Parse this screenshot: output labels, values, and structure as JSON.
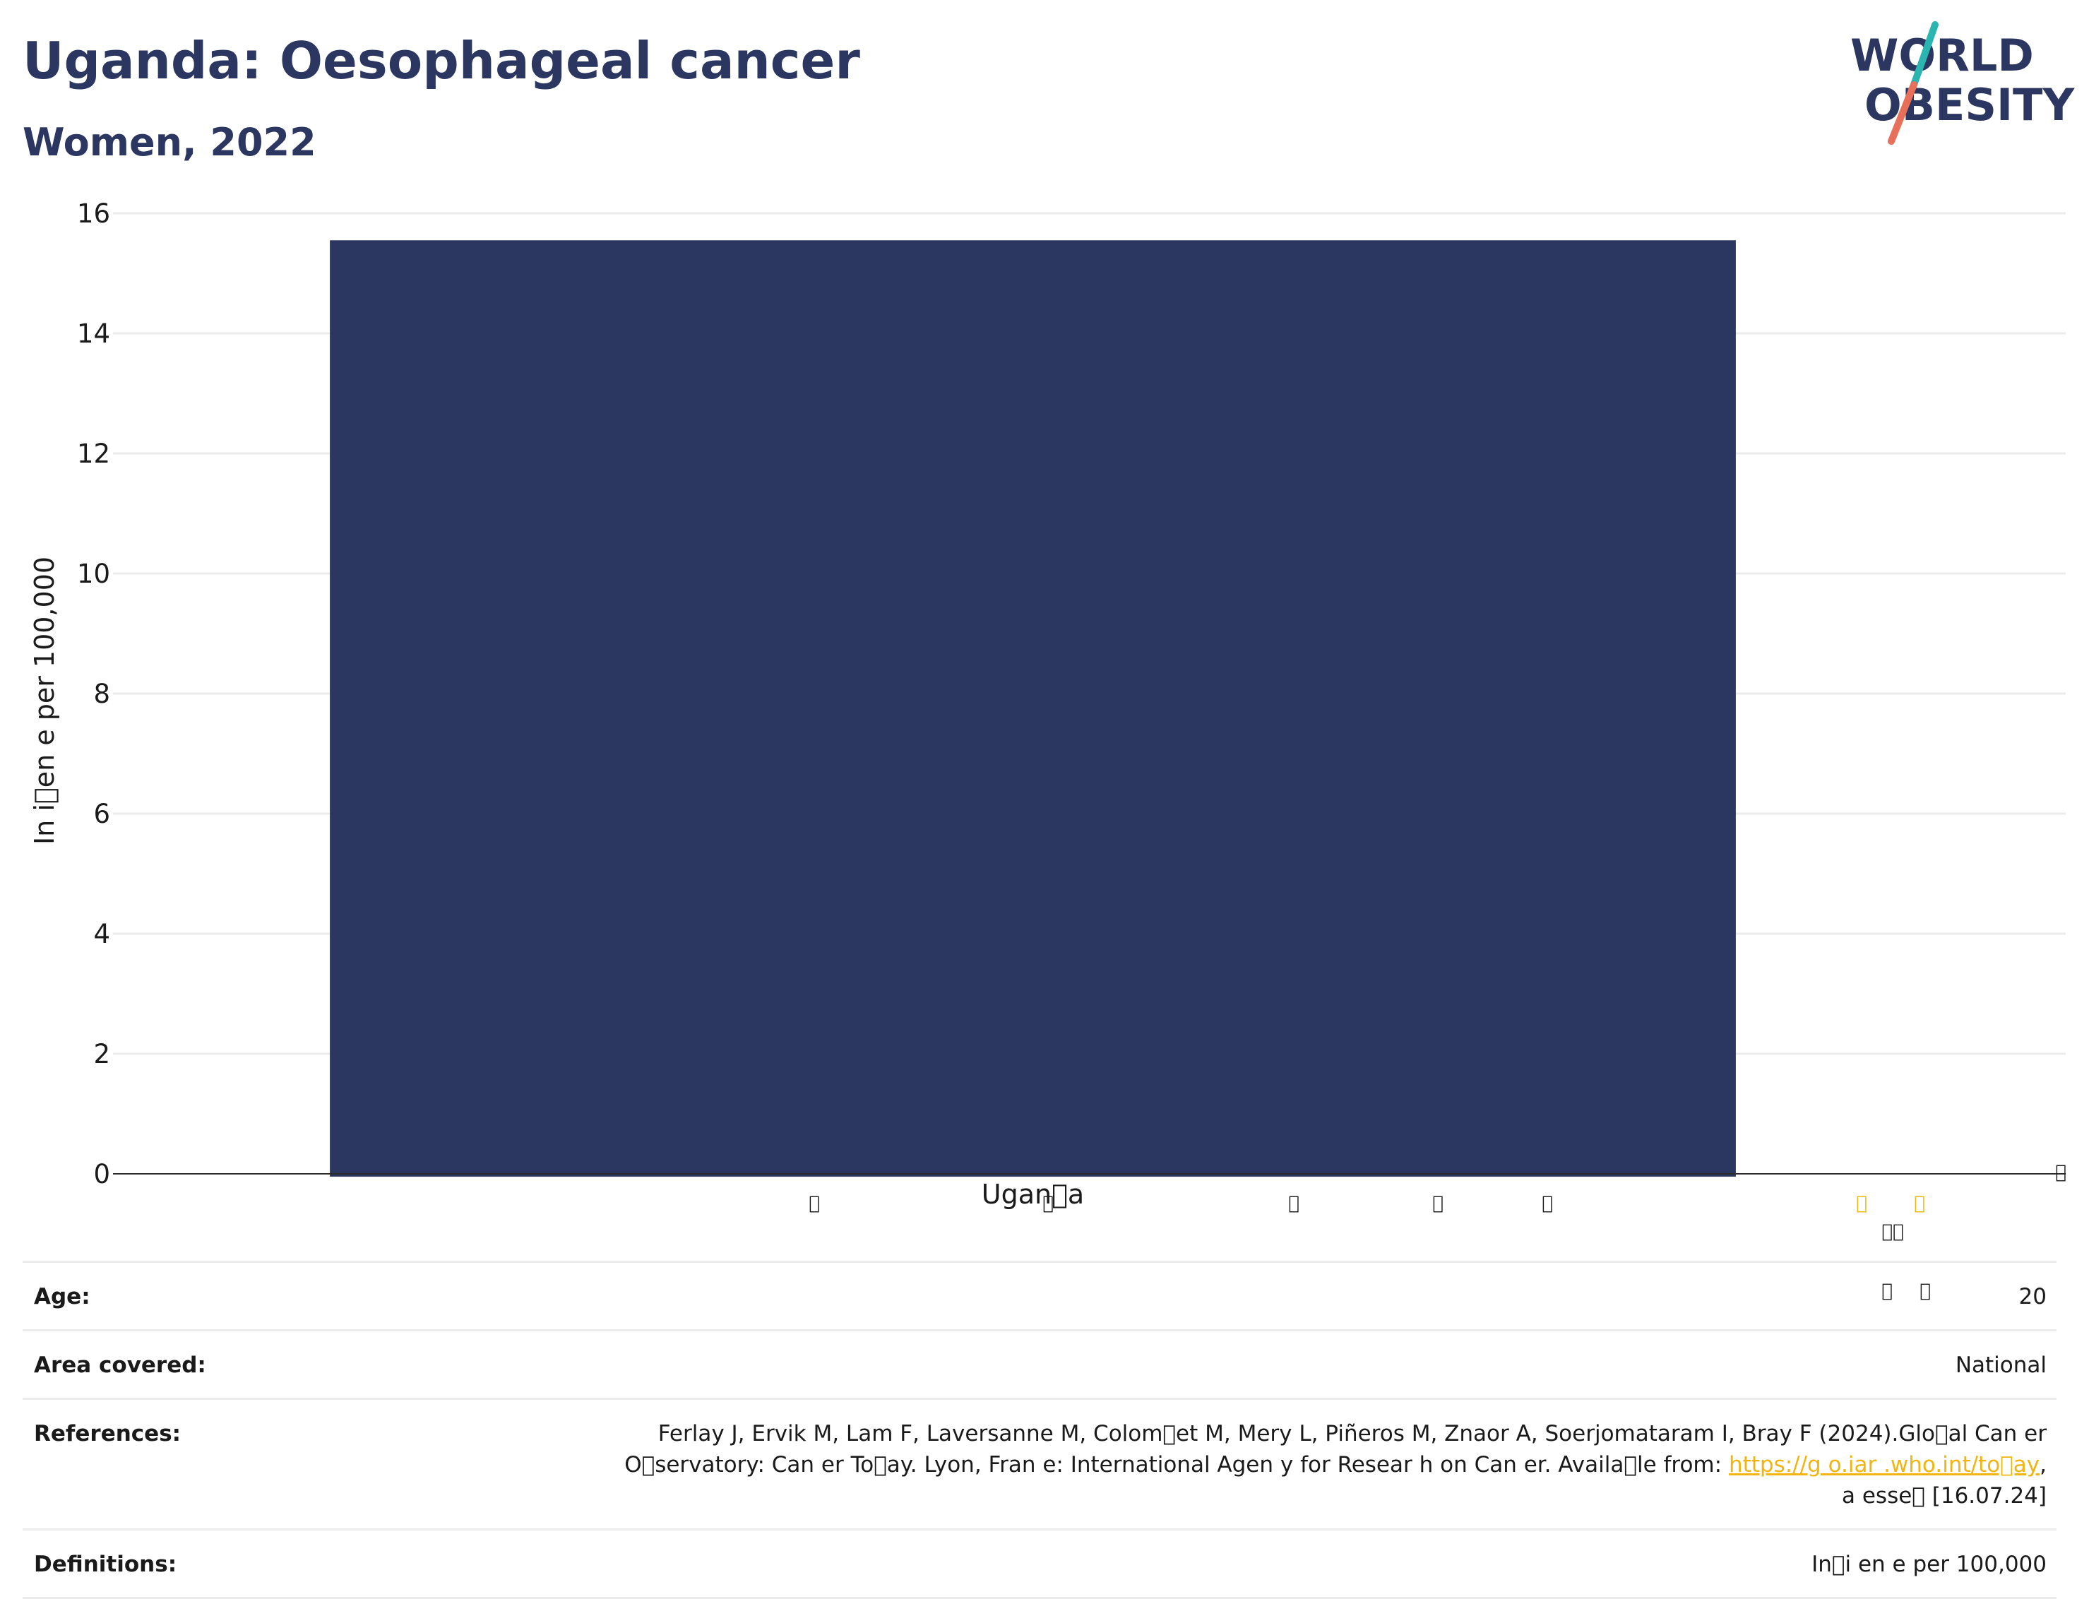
{
  "header": {
    "title": "Uganda: Oesophageal cancer",
    "subtitle": "Women, 2022"
  },
  "logo": {
    "line1": "WORLD",
    "line2": "OBESITY",
    "colors": {
      "text": "#2b3661",
      "slash_top": "#2bb5b0",
      "slash_bottom": "#e8705a"
    }
  },
  "chart_data": {
    "type": "bar",
    "categories": [
      "Ugan\u0000a"
    ],
    "values": [
      15.55
    ],
    "title": "Uganda: Oesophageal cancer",
    "subtitle": "Women, 2022",
    "xlabel": "",
    "ylabel": "In i\u0000en e per 100,000",
    "ylim": [
      0,
      16
    ],
    "yticks": [
      0,
      2,
      4,
      6,
      8,
      10,
      12,
      14,
      16
    ],
    "grid": true,
    "legend": "none",
    "bar_color": "#2b3661",
    "stray_glyphs": [
      "\u0000",
      "\u0000",
      "\u0000",
      "\u0000",
      "\u0000",
      "\u0000",
      "\u0000",
      "\u0000\u0000",
      "\u0000",
      "\u0000",
      "\u0000"
    ]
  },
  "info": {
    "age": {
      "label": "Age:",
      "value": "20"
    },
    "area": {
      "label": "Area covered:",
      "value": "National"
    },
    "references": {
      "label": "References:",
      "line1": "Ferlay J, Ervik M, Lam F, Laversanne M, Colom\u0000et M, Mery L, Piñeros M, Znaor A, Soerjomataram I, Bray F (2024).Glo\u0000al Can  er",
      "line2_text": "O\u0000servatory: Can  er To\u0000ay. Lyon, Fran  e: International Agen  y for Resear  h on Can  er. Availa\u0000le from: ",
      "link": "https://g  o.iar  .who.int/to\u0000ay",
      "line2_end": ",",
      "line3": "a    esse\u0000 [16.07.24]"
    },
    "definitions": {
      "label": "Definitions:",
      "value": "In\u0000i  en  e per 100,000"
    }
  }
}
